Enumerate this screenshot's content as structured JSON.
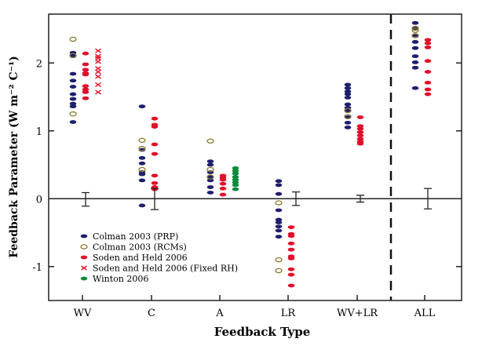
{
  "chart_data": {
    "type": "scatter",
    "xlabel": "Feedback Type",
    "ylabel": "Feedback Parameter (W m⁻² C⁻¹)",
    "categories": [
      "WV",
      "C",
      "A",
      "LR",
      "WV+LR",
      "ALL"
    ],
    "ylim": [
      -1.5,
      2.72
    ],
    "yticks": [
      -1,
      0,
      1,
      2
    ],
    "ytick_labels": [
      "-1",
      "0",
      "1",
      "2"
    ],
    "legend_position": "bottom-left",
    "separator_after_category": "WV+LR",
    "series": [
      {
        "name": "Colman 2003 (PRP)",
        "marker": "filled-ellipse",
        "color": "#1f1f6e",
        "values": {
          "WV": [
            2.15,
            2.1,
            1.84,
            1.74,
            1.65,
            1.54,
            1.47,
            1.4,
            1.36,
            1.13
          ],
          "C": [
            1.36,
            0.72,
            0.6,
            0.52,
            0.39,
            0.36,
            0.27,
            -0.1
          ],
          "A": [
            0.55,
            0.5,
            0.39,
            0.32,
            0.27,
            0.17,
            0.09
          ],
          "LR": [
            0.26,
            0.2,
            0.07,
            -0.17,
            -0.31,
            -0.35,
            -0.41,
            -0.47,
            -0.56
          ],
          "WV+LR": [
            1.68,
            1.63,
            1.58,
            1.54,
            1.49,
            1.39,
            1.34,
            1.29,
            1.2,
            1.12,
            1.05
          ],
          "ALL": [
            2.59,
            2.51,
            2.41,
            2.31,
            2.22,
            2.1,
            2.01,
            1.93,
            1.63
          ]
        }
      },
      {
        "name": "Colman 2003 (RCMs)",
        "marker": "open-ellipse",
        "color": "#8a7a2e",
        "values": {
          "WV": [
            2.35,
            2.11,
            1.25
          ],
          "C": [
            0.86,
            0.74,
            0.43
          ],
          "A": [
            0.85,
            0.43,
            0.32
          ],
          "LR": [
            -0.06,
            -0.9,
            -1.06
          ],
          "WV+LR": [
            1.3,
            1.21
          ],
          "ALL": [
            2.51,
            2.48,
            2.4
          ]
        }
      },
      {
        "name": "Soden and Held 2006",
        "marker": "filled-ellipse",
        "color": "#e0102a",
        "values": {
          "WV": [
            2.14,
            1.98,
            1.9,
            1.85,
            1.83,
            1.66,
            1.61,
            1.57,
            1.48
          ],
          "C": [
            1.18,
            1.09,
            1.06,
            0.8,
            0.66,
            0.34,
            0.23,
            0.17,
            0.14
          ],
          "A": [
            0.34,
            0.31,
            0.28,
            0.22,
            0.15,
            0.06
          ],
          "LR": [
            -0.42,
            -0.52,
            -0.55,
            -0.66,
            -0.75,
            -0.85,
            -0.88,
            -1.04,
            -1.12,
            -1.28
          ],
          "WV+LR": [
            1.2,
            1.07,
            1.03,
            0.98,
            0.93,
            0.88,
            0.84,
            0.81
          ],
          "ALL": [
            2.34,
            2.29,
            2.23,
            2.03,
            1.87,
            1.71,
            1.61,
            1.54
          ]
        }
      },
      {
        "name": "Soden and Held 2006 (Fixed RH)",
        "marker": "x",
        "color": "#e0102a",
        "values": {
          "WV": [
            2.18,
            2.1,
            2.07,
            2.02,
            1.92,
            1.87,
            1.8,
            1.68,
            1.57
          ]
        }
      },
      {
        "name": "Winton 2006",
        "marker": "filled-ellipse",
        "color": "#0f8a3c",
        "values": {
          "A": [
            0.45,
            0.41,
            0.37,
            0.32,
            0.28,
            0.24,
            0.2,
            0.14
          ]
        }
      }
    ],
    "error_bars": {
      "WV": [
        -0.11,
        0.09
      ],
      "C": [
        -0.16,
        0.15
      ],
      "LR": [
        -0.1,
        0.1
      ],
      "WV+LR": [
        -0.05,
        0.05
      ],
      "ALL": [
        -0.15,
        0.15
      ]
    }
  }
}
